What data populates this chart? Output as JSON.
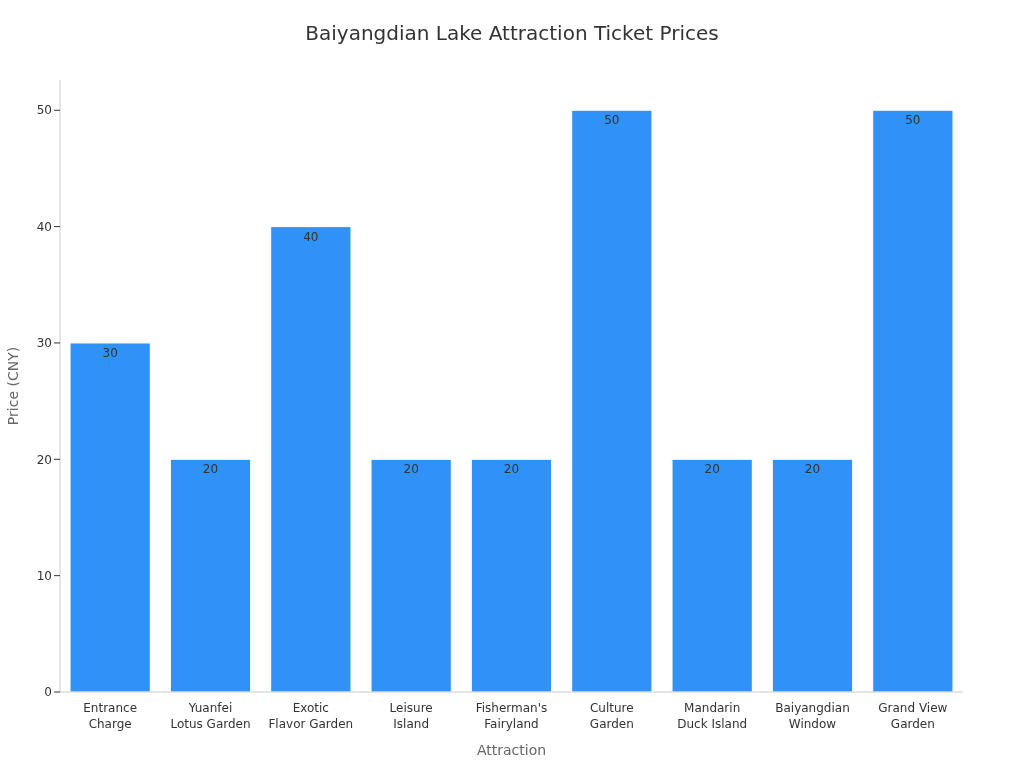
{
  "chart_data": {
    "type": "bar",
    "title": "Baiyangdian Lake Attraction Ticket Prices",
    "xlabel": "Attraction",
    "ylabel": "Price (CNY)",
    "categories": [
      "Entrance\nCharge",
      "Yuanfei\nLotus Garden",
      "Exotic\nFlavor Garden",
      "Leisure\nIsland",
      "Fisherman's\nFairyland",
      "Culture\nGarden",
      "Mandarin\nDuck Island",
      "Baiyangdian\nWindow",
      "Grand View\nGarden"
    ],
    "values": [
      30,
      20,
      40,
      20,
      20,
      50,
      20,
      20,
      50
    ],
    "color": "#3092f7",
    "ylim": [
      0,
      52.6
    ],
    "yticks": [
      0,
      10,
      20,
      30,
      40,
      50
    ],
    "data_labels": true,
    "grid": false
  }
}
